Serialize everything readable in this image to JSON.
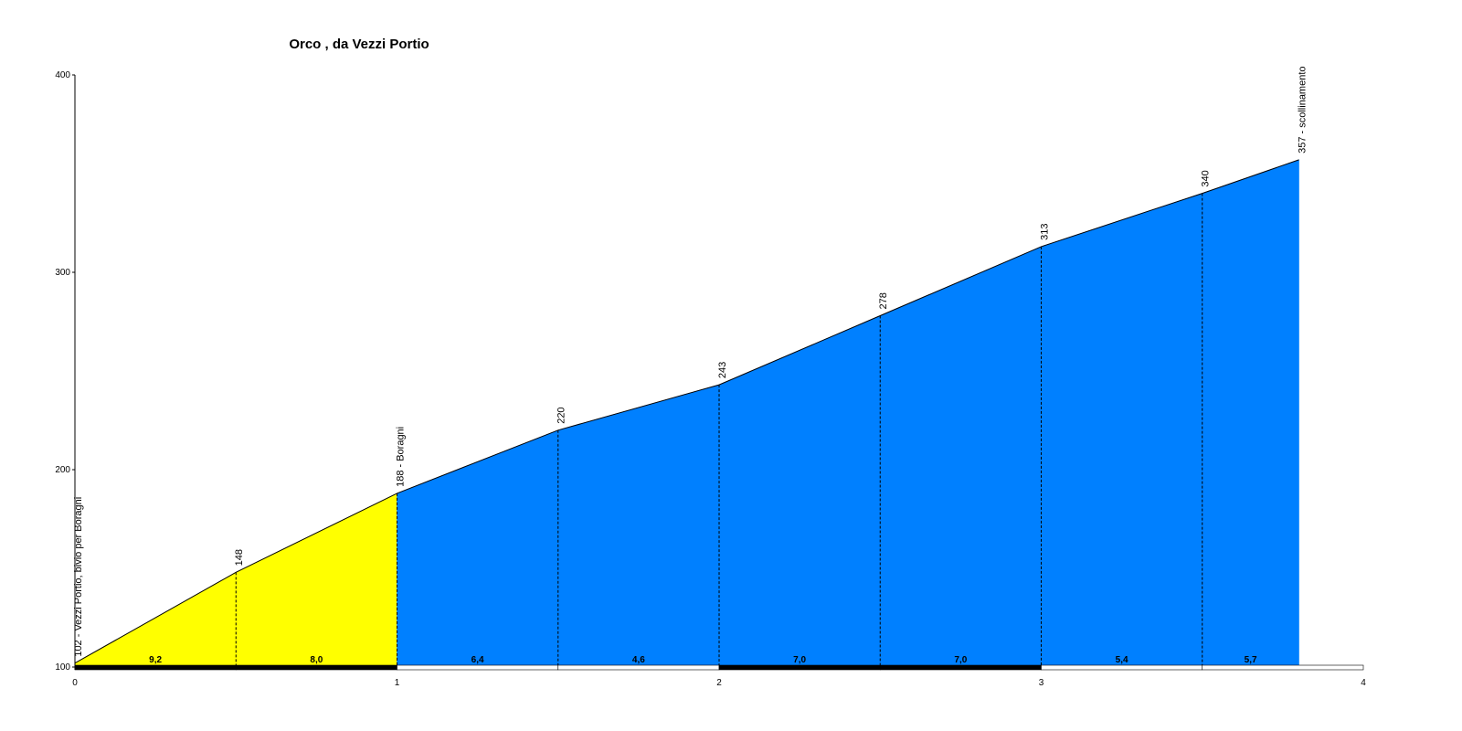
{
  "colors": {
    "first_km": "#ffff00",
    "climb": "#0080ff",
    "bar_dark": "#000000",
    "bar_light": "#ffffff"
  },
  "chart_data": {
    "type": "area",
    "title": "Orco , da Vezzi Portio",
    "xlabel": "",
    "ylabel": "",
    "xlim": [
      0,
      4
    ],
    "ylim": [
      100,
      400
    ],
    "xticks": [
      "0",
      "1",
      "2",
      "3",
      "4"
    ],
    "yticks": [
      "100",
      "200",
      "300",
      "400"
    ],
    "grid": false,
    "legend": "none",
    "points": [
      {
        "x": 0,
        "y": 102,
        "label": "102 - Vezzi Portio, bivio per Boragni"
      },
      {
        "x": 0.5,
        "y": 148,
        "label": "148"
      },
      {
        "x": 1,
        "y": 188,
        "label": "188 - Boragni"
      },
      {
        "x": 1.5,
        "y": 220,
        "label": "220"
      },
      {
        "x": 2,
        "y": 243,
        "label": "243"
      },
      {
        "x": 2.5,
        "y": 278,
        "label": "278"
      },
      {
        "x": 3,
        "y": 313,
        "label": "313"
      },
      {
        "x": 3.5,
        "y": 340,
        "label": "340"
      },
      {
        "x": 3.8,
        "y": 357,
        "label": "357 - scollinamento"
      }
    ],
    "segment_gradients": [
      "9,2",
      "8,0",
      "6,4",
      "4,6",
      "7,0",
      "7,0",
      "5,4",
      "5,7"
    ]
  }
}
